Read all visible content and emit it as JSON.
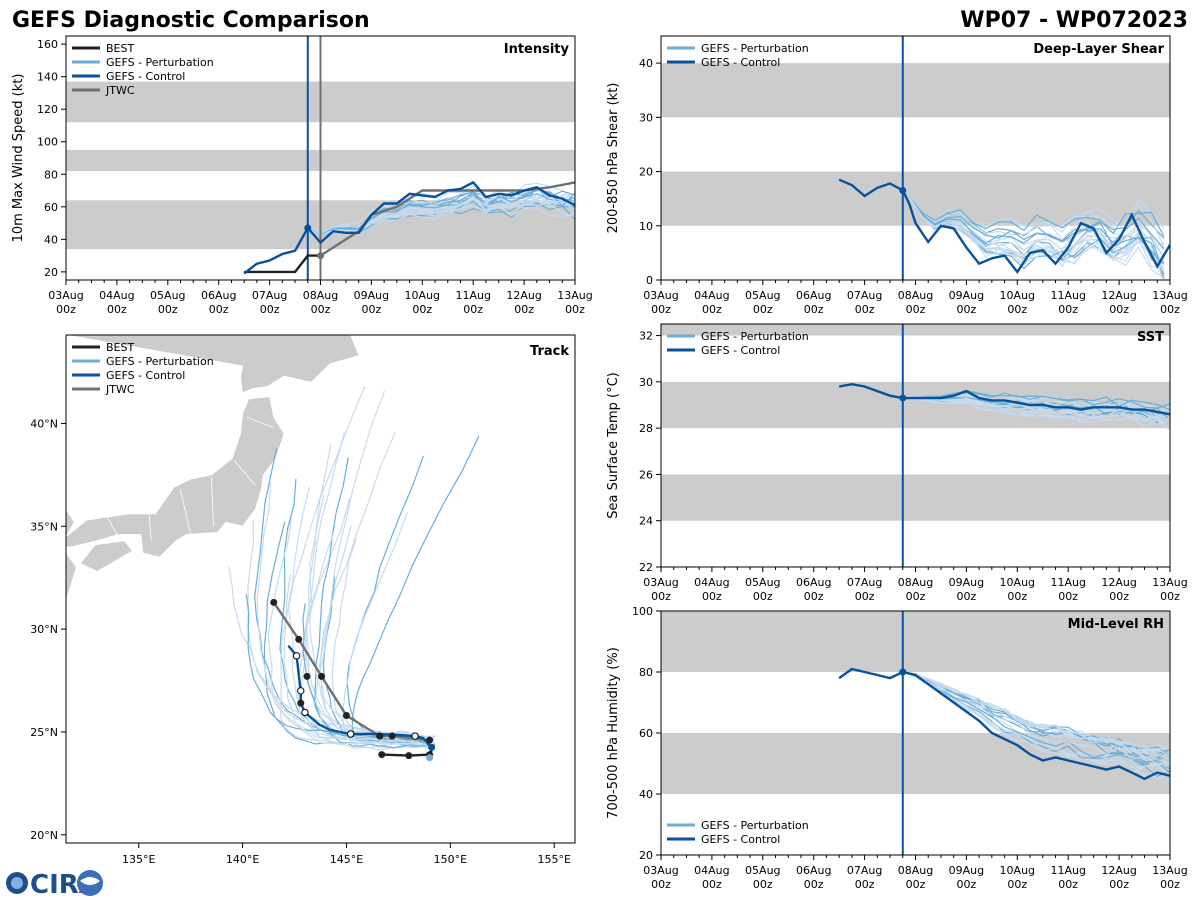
{
  "header": {
    "left_title": "GEFS Diagnostic Comparison",
    "right_title": "WP07 - WP072023"
  },
  "logo": {
    "text": "CIRA"
  },
  "colors": {
    "best": "#222222",
    "perturbation": "#6baed6",
    "perturbation_light": "#c6dbef",
    "control": "#08519c",
    "jtwc": "#707070",
    "band": "#cccccc",
    "land": "#cccccc"
  },
  "time_axis": {
    "labels": [
      "03Aug",
      "04Aug",
      "05Aug",
      "06Aug",
      "07Aug",
      "08Aug",
      "09Aug",
      "10Aug",
      "11Aug",
      "12Aug",
      "13Aug"
    ],
    "sub": "00z"
  },
  "chart_data": [
    {
      "id": "intensity",
      "type": "line",
      "title": "Intensity",
      "ylabel": "10m Max Wind Speed (kt)",
      "xlim": [
        0,
        10
      ],
      "ylim": [
        15,
        165
      ],
      "yticks": [
        20,
        40,
        60,
        80,
        100,
        120,
        140,
        160
      ],
      "bands": [
        [
          34,
          64
        ],
        [
          82,
          95
        ],
        [
          112,
          137
        ]
      ],
      "vlines": [
        {
          "x": 4.75,
          "series": "control"
        },
        {
          "x": 5.0,
          "series": "jtwc"
        }
      ],
      "legend": [
        "BEST",
        "GEFS - Perturbation",
        "GEFS - Control",
        "JTWC"
      ],
      "series": [
        {
          "name": "BEST",
          "key": "best",
          "x": [
            3.5,
            3.75,
            4.0,
            4.25,
            4.5,
            4.75,
            5.0
          ],
          "y": [
            20,
            20,
            20,
            20,
            20,
            30,
            30
          ]
        },
        {
          "name": "JTWC",
          "key": "jtwc",
          "x": [
            5.0,
            5.25,
            5.5,
            5.75,
            6.0,
            6.5,
            7.0,
            7.5,
            8.0,
            8.5,
            9.0,
            9.5,
            10.0
          ],
          "y": [
            30,
            35,
            40,
            45,
            55,
            60,
            70,
            70,
            70,
            70,
            70,
            72,
            75
          ]
        },
        {
          "name": "GEFS - Control",
          "key": "control",
          "x": [
            3.5,
            3.75,
            4.0,
            4.25,
            4.5,
            4.75,
            5.0,
            5.25,
            5.5,
            5.75,
            6.0,
            6.25,
            6.5,
            6.75,
            7.0,
            7.25,
            7.5,
            7.75,
            8.0,
            8.25,
            8.5,
            8.75,
            9.0,
            9.25,
            9.5,
            9.75,
            10.0
          ],
          "y": [
            19,
            25,
            27,
            31,
            33,
            47,
            38,
            45,
            44,
            44,
            55,
            62,
            62,
            68,
            67,
            66,
            70,
            71,
            75,
            66,
            68,
            67,
            70,
            72,
            67,
            65,
            61
          ]
        }
      ],
      "ensemble": {
        "count": 20,
        "start_x": 4.75,
        "start_y": 47,
        "end_mean": 65,
        "spread": 14
      }
    },
    {
      "id": "shear",
      "type": "line",
      "title": "Deep-Layer Shear",
      "ylabel": "200-850 hPa Shear (kt)",
      "xlim": [
        0,
        10
      ],
      "ylim": [
        0,
        45
      ],
      "yticks": [
        0,
        10,
        20,
        30,
        40
      ],
      "bands": [
        [
          10,
          20
        ],
        [
          30,
          40
        ]
      ],
      "vlines": [
        {
          "x": 4.75,
          "series": "control"
        }
      ],
      "legend": [
        "GEFS - Perturbation",
        "GEFS - Control"
      ],
      "series": [
        {
          "name": "GEFS - Control",
          "key": "control",
          "x": [
            3.5,
            3.75,
            4.0,
            4.25,
            4.5,
            4.75,
            4.88,
            5.0,
            5.25,
            5.5,
            5.75,
            6.0,
            6.25,
            6.5,
            6.75,
            7.0,
            7.25,
            7.5,
            7.75,
            8.0,
            8.25,
            8.5,
            8.75,
            9.0,
            9.25,
            9.5,
            9.75,
            10.0
          ],
          "y": [
            18.5,
            17.5,
            15.5,
            17,
            17.8,
            16.5,
            14,
            10.5,
            7,
            10,
            9.5,
            6,
            3,
            4,
            4.5,
            1.5,
            5,
            5.5,
            3,
            6,
            10.5,
            9.5,
            5,
            7.5,
            12,
            7,
            2.5,
            6.5
          ]
        }
      ],
      "ensemble": {
        "count": 20,
        "start_x": 4.88,
        "start_y": 14,
        "end_mean": 7,
        "spread": 7
      }
    },
    {
      "id": "sst",
      "type": "line",
      "title": "SST",
      "ylabel": "Sea Surface Temp (°C)",
      "xlim": [
        0,
        10
      ],
      "ylim": [
        22,
        32.5
      ],
      "yticks": [
        22,
        24,
        26,
        28,
        30,
        32
      ],
      "bands": [
        [
          24,
          26
        ],
        [
          28,
          30
        ],
        [
          32,
          34
        ]
      ],
      "vlines": [
        {
          "x": 4.75,
          "series": "control"
        }
      ],
      "legend": [
        "GEFS - Perturbation",
        "GEFS - Control"
      ],
      "series": [
        {
          "name": "GEFS - Control",
          "key": "control",
          "x": [
            3.5,
            3.75,
            4.0,
            4.25,
            4.5,
            4.75,
            5.0,
            5.25,
            5.5,
            5.75,
            6.0,
            6.25,
            6.5,
            6.75,
            7.0,
            7.25,
            7.5,
            7.75,
            8.0,
            8.25,
            8.5,
            8.75,
            9.0,
            9.25,
            9.5,
            9.75,
            10.0
          ],
          "y": [
            29.8,
            29.9,
            29.8,
            29.6,
            29.4,
            29.3,
            29.3,
            29.3,
            29.3,
            29.4,
            29.6,
            29.3,
            29.2,
            29.2,
            29.1,
            29.0,
            29.0,
            28.9,
            28.9,
            28.8,
            28.9,
            28.9,
            28.9,
            28.8,
            28.8,
            28.7,
            28.6
          ]
        }
      ],
      "ensemble": {
        "count": 20,
        "start_x": 4.75,
        "start_y": 29.3,
        "end_mean": 28.4,
        "spread": 0.8
      }
    },
    {
      "id": "rh",
      "type": "line",
      "title": "Mid-Level RH",
      "ylabel": "700-500 hPa Humidity (%)",
      "xlim": [
        0,
        10
      ],
      "ylim": [
        20,
        100
      ],
      "yticks": [
        20,
        40,
        60,
        80,
        100
      ],
      "bands": [
        [
          40,
          60
        ],
        [
          80,
          100
        ]
      ],
      "vlines": [
        {
          "x": 4.75,
          "series": "control"
        }
      ],
      "legend": [
        "GEFS - Perturbation",
        "GEFS - Control"
      ],
      "series": [
        {
          "name": "GEFS - Control",
          "key": "control",
          "x": [
            3.5,
            3.75,
            4.0,
            4.25,
            4.5,
            4.75,
            5.0,
            5.25,
            5.5,
            5.75,
            6.0,
            6.25,
            6.5,
            6.75,
            7.0,
            7.25,
            7.5,
            7.75,
            8.0,
            8.25,
            8.5,
            8.75,
            9.0,
            9.25,
            9.5,
            9.75,
            10.0
          ],
          "y": [
            78,
            81,
            80,
            79,
            78,
            80,
            79,
            76,
            73,
            70,
            67,
            64,
            60,
            58,
            56,
            53,
            51,
            52,
            51,
            50,
            49,
            48,
            49,
            47,
            45,
            47,
            46
          ]
        }
      ],
      "ensemble": {
        "count": 20,
        "start_x": 4.75,
        "start_y": 80,
        "end_mean": 53,
        "spread": 8
      }
    },
    {
      "id": "track",
      "type": "scatter",
      "title": "Track",
      "xlim": [
        131.5,
        156
      ],
      "ylim": [
        19.6,
        44.3
      ],
      "xticks": [
        135,
        140,
        145,
        150,
        155
      ],
      "xtick_labels": [
        "135°E",
        "140°E",
        "145°E",
        "150°E",
        "155°E"
      ],
      "yticks": [
        20,
        25,
        30,
        35,
        40
      ],
      "ytick_labels": [
        "20°N",
        "25°N",
        "30°N",
        "35°N",
        "40°N"
      ],
      "legend": [
        "BEST",
        "GEFS - Perturbation",
        "GEFS - Control",
        "JTWC"
      ],
      "series": [
        {
          "name": "BEST",
          "key": "best",
          "lon": [
            146.7,
            148.0,
            149.0,
            149.1
          ],
          "lat": [
            23.9,
            23.85,
            23.9,
            24.1
          ]
        },
        {
          "name": "JTWC",
          "key": "jtwc",
          "lon": [
            149.0,
            147.2,
            146.6,
            145.0,
            143.8,
            142.7,
            141.5
          ],
          "lat": [
            24.6,
            24.8,
            24.8,
            25.8,
            27.7,
            29.5,
            31.3
          ],
          "dots": [
            [
              149.0,
              24.6
            ],
            [
              147.2,
              24.8
            ],
            [
              146.6,
              24.8
            ],
            [
              145.0,
              25.8
            ],
            [
              143.8,
              27.7
            ],
            [
              142.7,
              29.5
            ],
            [
              141.5,
              31.3
            ]
          ]
        },
        {
          "name": "GEFS - Control",
          "key": "control",
          "lon": [
            149.1,
            148.7,
            148.3,
            147.5,
            146.5,
            145.2,
            144.2,
            143.7,
            143.0,
            142.8,
            142.8,
            142.7,
            142.6,
            142.2
          ],
          "lat": [
            24.2,
            24.7,
            24.8,
            24.85,
            24.9,
            24.9,
            25.1,
            25.35,
            25.95,
            26.4,
            27.0,
            27.8,
            28.7,
            29.2
          ],
          "open_dots": [
            [
              148.3,
              24.8
            ],
            [
              145.2,
              24.9
            ],
            [
              143.0,
              25.95
            ],
            [
              142.8,
              27.0
            ],
            [
              142.6,
              28.7
            ]
          ],
          "filled_dots": [
            [
              146.6,
              24.8
            ],
            [
              142.8,
              26.4
            ],
            [
              143.1,
              27.7
            ]
          ]
        }
      ],
      "ensemble": {
        "count": 26
      }
    }
  ]
}
